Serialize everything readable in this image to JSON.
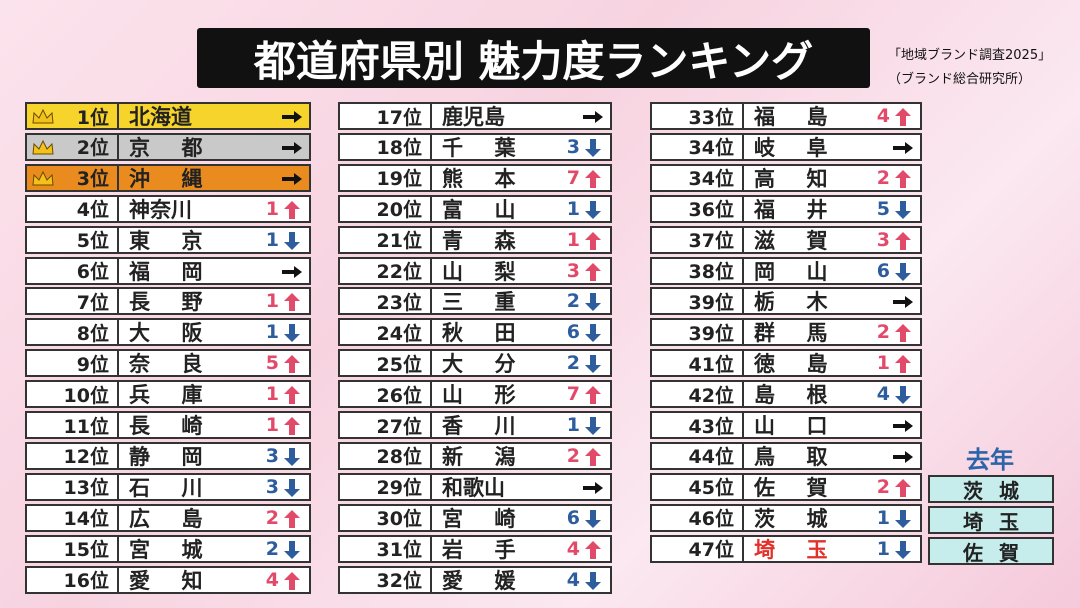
{
  "header": {
    "title": "都道府県別 魅力度ランキング",
    "source": [
      "「地域ブランド調査2025」",
      "（ブランド総合研究所）"
    ]
  },
  "rankings": [
    {
      "rank": "1位",
      "name": "北海道",
      "direction": "same",
      "color": "#f6d42c"
    },
    {
      "rank": "2位",
      "name": "京都",
      "direction": "same",
      "color": "#c9c9c9"
    },
    {
      "rank": "3位",
      "name": "沖縄",
      "direction": "same",
      "color": "#e98b1e"
    },
    {
      "rank": "4位",
      "name": "神奈川",
      "change": 1,
      "direction": "up"
    },
    {
      "rank": "5位",
      "name": "東京",
      "change": 1,
      "direction": "down"
    },
    {
      "rank": "6位",
      "name": "福岡",
      "direction": "same"
    },
    {
      "rank": "7位",
      "name": "長野",
      "change": 1,
      "direction": "up"
    },
    {
      "rank": "8位",
      "name": "大阪",
      "change": 1,
      "direction": "down"
    },
    {
      "rank": "9位",
      "name": "奈良",
      "change": 5,
      "direction": "up"
    },
    {
      "rank": "10位",
      "name": "兵庫",
      "change": 1,
      "direction": "up"
    },
    {
      "rank": "11位",
      "name": "長崎",
      "change": 1,
      "direction": "up"
    },
    {
      "rank": "12位",
      "name": "静岡",
      "change": 3,
      "direction": "down"
    },
    {
      "rank": "13位",
      "name": "石川",
      "change": 3,
      "direction": "down"
    },
    {
      "rank": "14位",
      "name": "広島",
      "change": 2,
      "direction": "up"
    },
    {
      "rank": "15位",
      "name": "宮城",
      "change": 2,
      "direction": "down"
    },
    {
      "rank": "16位",
      "name": "愛知",
      "change": 4,
      "direction": "up"
    },
    {
      "rank": "17位",
      "name": "鹿児島",
      "direction": "same"
    },
    {
      "rank": "18位",
      "name": "千葉",
      "change": 3,
      "direction": "down"
    },
    {
      "rank": "19位",
      "name": "熊本",
      "change": 7,
      "direction": "up"
    },
    {
      "rank": "20位",
      "name": "富山",
      "change": 1,
      "direction": "down"
    },
    {
      "rank": "21位",
      "name": "青森",
      "change": 1,
      "direction": "up"
    },
    {
      "rank": "22位",
      "name": "山梨",
      "change": 3,
      "direction": "up"
    },
    {
      "rank": "23位",
      "name": "三重",
      "change": 2,
      "direction": "down"
    },
    {
      "rank": "24位",
      "name": "秋田",
      "change": 6,
      "direction": "down"
    },
    {
      "rank": "25位",
      "name": "大分",
      "change": 2,
      "direction": "down"
    },
    {
      "rank": "26位",
      "name": "山形",
      "change": 7,
      "direction": "up"
    },
    {
      "rank": "27位",
      "name": "香川",
      "change": 1,
      "direction": "down"
    },
    {
      "rank": "28位",
      "name": "新潟",
      "change": 2,
      "direction": "up"
    },
    {
      "rank": "29位",
      "name": "和歌山",
      "direction": "same"
    },
    {
      "rank": "30位",
      "name": "宮崎",
      "change": 6,
      "direction": "down"
    },
    {
      "rank": "31位",
      "name": "岩手",
      "change": 4,
      "direction": "up"
    },
    {
      "rank": "32位",
      "name": "愛媛",
      "change": 4,
      "direction": "down"
    },
    {
      "rank": "33位",
      "name": "福島",
      "change": 4,
      "direction": "up"
    },
    {
      "rank": "34位",
      "name": "岐阜",
      "direction": "same"
    },
    {
      "rank": "34位",
      "name": "高知",
      "change": 2,
      "direction": "up"
    },
    {
      "rank": "36位",
      "name": "福井",
      "change": 5,
      "direction": "down"
    },
    {
      "rank": "37位",
      "name": "滋賀",
      "change": 3,
      "direction": "up"
    },
    {
      "rank": "38位",
      "name": "岡山",
      "change": 6,
      "direction": "down"
    },
    {
      "rank": "39位",
      "name": "栃木",
      "direction": "same"
    },
    {
      "rank": "39位",
      "name": "群馬",
      "change": 2,
      "direction": "up"
    },
    {
      "rank": "41位",
      "name": "徳島",
      "change": 1,
      "direction": "up"
    },
    {
      "rank": "42位",
      "name": "島根",
      "change": 4,
      "direction": "down"
    },
    {
      "rank": "43位",
      "name": "山口",
      "direction": "same"
    },
    {
      "rank": "44位",
      "name": "鳥取",
      "direction": "same"
    },
    {
      "rank": "45位",
      "name": "佐賀",
      "change": 2,
      "direction": "up"
    },
    {
      "rank": "46位",
      "name": "茨城",
      "change": 1,
      "direction": "down"
    },
    {
      "rank": "47位",
      "name": "埼玉",
      "change": 1,
      "direction": "down",
      "name_color": "#e3302a"
    }
  ],
  "last_year": {
    "title": "去年",
    "items": [
      "茨城",
      "埼玉",
      "佐賀"
    ]
  }
}
